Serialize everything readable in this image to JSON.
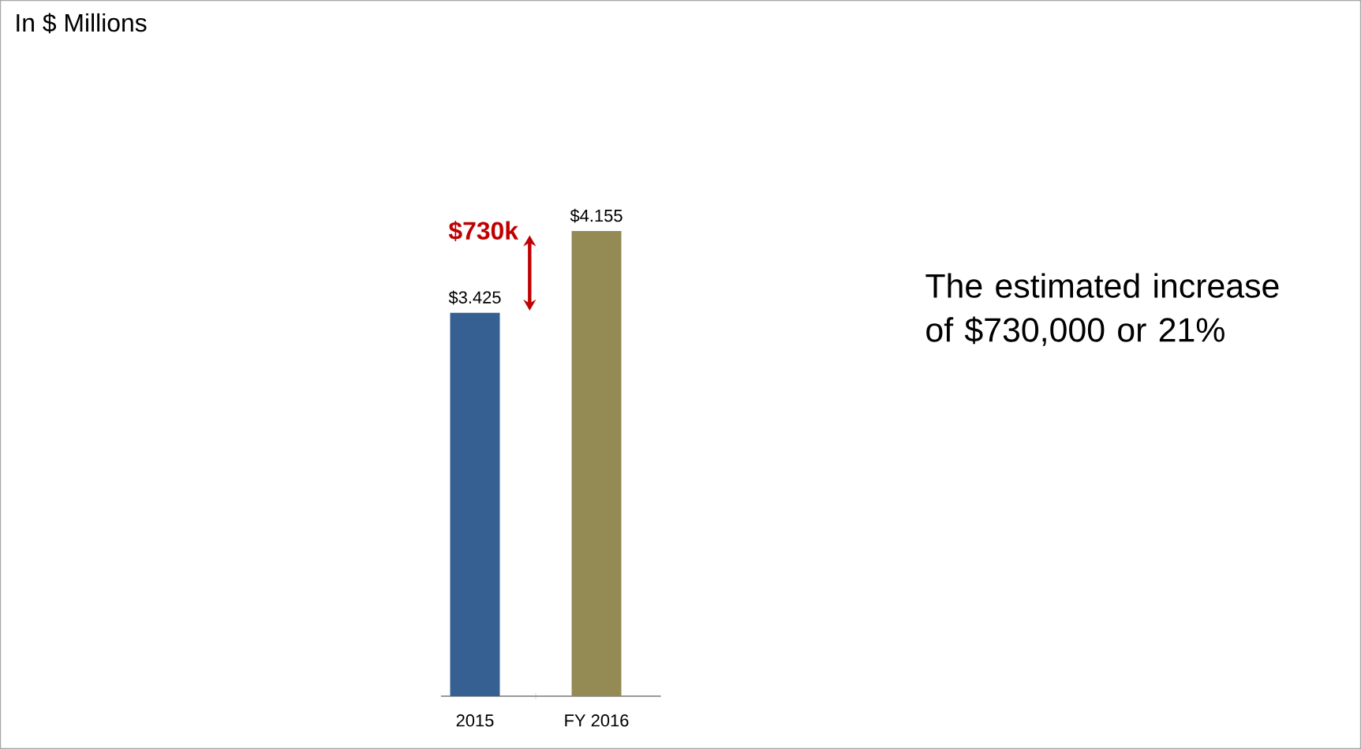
{
  "chart_data": {
    "type": "bar",
    "categories": [
      "2015",
      "FY 2016"
    ],
    "values": [
      3.425,
      4.155
    ],
    "colors": [
      "#366092",
      "#948a54"
    ],
    "value_labels": [
      "$3.425",
      "$4.155"
    ],
    "annotations": [
      "$730k",
      "The estimated increase of $730,000 or 21%",
      "In $ Millions"
    ]
  }
}
